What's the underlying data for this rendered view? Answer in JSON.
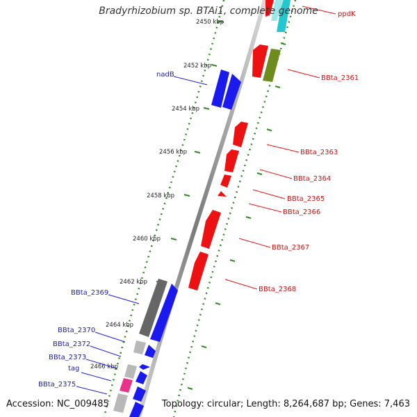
{
  "title": "Bradyrhizobium sp. BTAi1, complete genome",
  "accession": "Accession: NC_009485",
  "summary": "Topology: circular; Length: 8,264,687 bp; Genes: 7,463",
  "colors": {
    "backbone": "#8a8a8a",
    "scale_dots": "#2e8b22",
    "forward": "#1a1aee",
    "reverse": "#ee1111",
    "gray": "#666666",
    "lightgray": "#b8b8b8",
    "pink": "#e8338a",
    "olive": "#6e8c1e",
    "cyan": "#21c9cf",
    "label_blue": "#2222aa",
    "label_red": "#cc1111"
  },
  "scale": {
    "ticks": [
      "2450 kbp",
      "2452 kbp",
      "2454 kbp",
      "2456 kbp",
      "2458 kbp",
      "2460 kbp",
      "2462 kbp",
      "2464 kbp",
      "2466 kbp"
    ]
  },
  "genes": {
    "forward_labels": [
      "nadB",
      "BBta_2369",
      "BBta_2370",
      "BBta_2372",
      "BBta_2373",
      "tag",
      "BBta_2375"
    ],
    "reverse_labels": [
      "ppdK",
      "BBta_2361",
      "BBta_2363",
      "BBta_2364",
      "BBta_2365",
      "BBta_2366",
      "BBta_2367",
      "BBta_2368"
    ]
  }
}
